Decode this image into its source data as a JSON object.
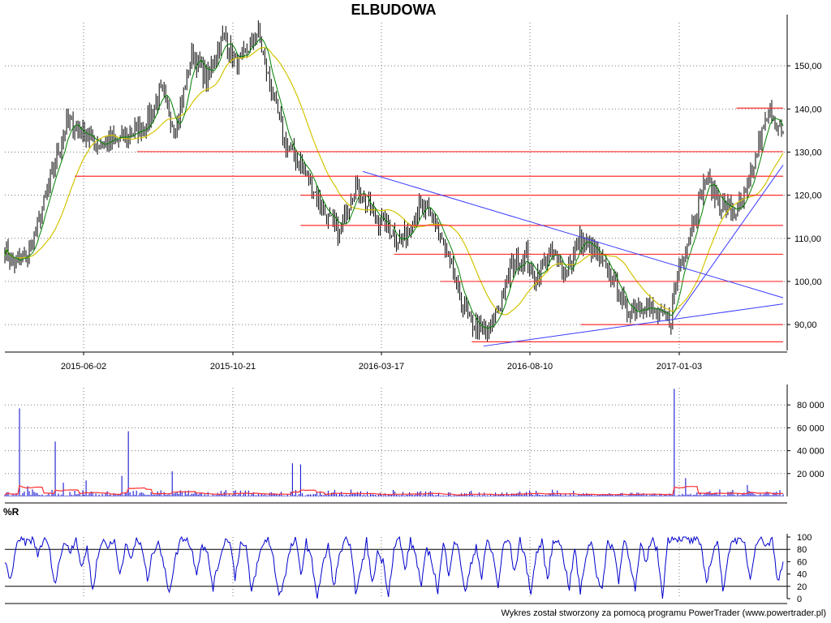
{
  "chart_data": [
    {
      "type": "candlestick",
      "title": "ELBUDOWA",
      "xlabels": [
        "2015-06-02",
        "2015-10-21",
        "2016-03-17",
        "2016-08-10",
        "2017-01-03"
      ],
      "ylim": [
        84,
        160
      ],
      "yticks": [
        90,
        100,
        110,
        120,
        130,
        140,
        150
      ],
      "ytick_labels": [
        "90,00",
        "100,00",
        "110,00",
        "120,00",
        "130,00",
        "140,00",
        "150,00"
      ],
      "grid": true,
      "price_path": [
        {
          "t": 0.0,
          "p": 108
        },
        {
          "t": 0.01,
          "p": 104
        },
        {
          "t": 0.03,
          "p": 106
        },
        {
          "t": 0.05,
          "p": 118
        },
        {
          "t": 0.08,
          "p": 137
        },
        {
          "t": 0.12,
          "p": 132
        },
        {
          "t": 0.15,
          "p": 133
        },
        {
          "t": 0.18,
          "p": 136
        },
        {
          "t": 0.2,
          "p": 144
        },
        {
          "t": 0.22,
          "p": 135
        },
        {
          "t": 0.24,
          "p": 153
        },
        {
          "t": 0.26,
          "p": 147
        },
        {
          "t": 0.28,
          "p": 157
        },
        {
          "t": 0.3,
          "p": 150
        },
        {
          "t": 0.325,
          "p": 158
        },
        {
          "t": 0.34,
          "p": 146
        },
        {
          "t": 0.36,
          "p": 132
        },
        {
          "t": 0.385,
          "p": 126
        },
        {
          "t": 0.41,
          "p": 116
        },
        {
          "t": 0.43,
          "p": 111
        },
        {
          "t": 0.45,
          "p": 123
        },
        {
          "t": 0.47,
          "p": 116
        },
        {
          "t": 0.49,
          "p": 113
        },
        {
          "t": 0.51,
          "p": 109
        },
        {
          "t": 0.53,
          "p": 117
        },
        {
          "t": 0.55,
          "p": 115
        },
        {
          "t": 0.57,
          "p": 105
        },
        {
          "t": 0.585,
          "p": 96
        },
        {
          "t": 0.6,
          "p": 90
        },
        {
          "t": 0.62,
          "p": 88
        },
        {
          "t": 0.635,
          "p": 94
        },
        {
          "t": 0.65,
          "p": 103
        },
        {
          "t": 0.67,
          "p": 106
        },
        {
          "t": 0.68,
          "p": 100
        },
        {
          "t": 0.7,
          "p": 107
        },
        {
          "t": 0.72,
          "p": 102
        },
        {
          "t": 0.74,
          "p": 110
        },
        {
          "t": 0.76,
          "p": 106
        },
        {
          "t": 0.78,
          "p": 101
        },
        {
          "t": 0.8,
          "p": 93
        },
        {
          "t": 0.82,
          "p": 95
        },
        {
          "t": 0.84,
          "p": 92
        },
        {
          "t": 0.855,
          "p": 91
        },
        {
          "t": 0.865,
          "p": 103
        },
        {
          "t": 0.88,
          "p": 111
        },
        {
          "t": 0.9,
          "p": 124
        },
        {
          "t": 0.92,
          "p": 118
        },
        {
          "t": 0.94,
          "p": 116
        },
        {
          "t": 0.955,
          "p": 121
        },
        {
          "t": 0.97,
          "p": 133
        },
        {
          "t": 0.985,
          "p": 140
        },
        {
          "t": 1.0,
          "p": 133
        }
      ],
      "ma_short_color": "#008000",
      "ma_long_color": "#d4c400",
      "candle_color": "#000000",
      "support_resistance_levels": [
        {
          "value": 140.2,
          "from": 0.94,
          "to": 1.0
        },
        {
          "value": 130.1,
          "from": 0.17,
          "to": 1.0
        },
        {
          "value": 124.4,
          "from": 0.09,
          "to": 1.0
        },
        {
          "value": 120.0,
          "from": 0.38,
          "to": 1.0
        },
        {
          "value": 113.0,
          "from": 0.38,
          "to": 1.0
        },
        {
          "value": 106.3,
          "from": 0.5,
          "to": 1.0
        },
        {
          "value": 100.0,
          "from": 0.56,
          "to": 1.0
        },
        {
          "value": 90.0,
          "from": 0.74,
          "to": 1.0
        },
        {
          "value": 86.0,
          "from": 0.6,
          "to": 1.0
        }
      ],
      "level_color": "#ff3030",
      "trendlines": [
        {
          "t1": 0.46,
          "p1": 125.5,
          "t2": 1.0,
          "p2": 96.2
        },
        {
          "t1": 0.615,
          "p1": 85.0,
          "t2": 1.0,
          "p2": 94.8
        },
        {
          "t1": 0.86,
          "p1": 91.2,
          "t2": 1.0,
          "p2": 127.0
        }
      ],
      "trendline_color": "#3a3aff"
    },
    {
      "type": "bar",
      "ylim": [
        0,
        95000
      ],
      "yticks": [
        20000,
        40000,
        60000,
        80000
      ],
      "ytick_labels": [
        "20 000",
        "40 000",
        "60 000",
        "80 000"
      ],
      "bar_color": "#0000cc",
      "avg_color": "#ff3030",
      "spikes": [
        {
          "t": 0.018,
          "v": 77000
        },
        {
          "t": 0.03,
          "v": 9000
        },
        {
          "t": 0.065,
          "v": 48000
        },
        {
          "t": 0.075,
          "v": 12000
        },
        {
          "t": 0.105,
          "v": 14000
        },
        {
          "t": 0.15,
          "v": 18000
        },
        {
          "t": 0.158,
          "v": 57000
        },
        {
          "t": 0.215,
          "v": 22000
        },
        {
          "t": 0.37,
          "v": 29000
        },
        {
          "t": 0.38,
          "v": 28000
        },
        {
          "t": 0.86,
          "v": 94000
        },
        {
          "t": 0.875,
          "v": 16000
        },
        {
          "t": 0.955,
          "v": 10000
        }
      ]
    },
    {
      "type": "line",
      "label": "%R",
      "ylim": [
        0,
        100
      ],
      "yticks": [
        0,
        20,
        40,
        60,
        80,
        100
      ],
      "ytick_labels": [
        "0",
        "20",
        "40",
        "60",
        "80",
        "100"
      ],
      "levels": [
        20,
        80
      ],
      "line_color": "#0000cc",
      "values": [
        60,
        28,
        82,
        96,
        90,
        98,
        72,
        95,
        88,
        22,
        64,
        92,
        78,
        100,
        46,
        86,
        12,
        72,
        96,
        84,
        94,
        40,
        88,
        62,
        98,
        82,
        30,
        76,
        95,
        52,
        12,
        60,
        96,
        100,
        82,
        44,
        90,
        70,
        18,
        58,
        92,
        98,
        34,
        90,
        82,
        10,
        54,
        86,
        100,
        64,
        6,
        30,
        78,
        98,
        40,
        92,
        60,
        4,
        52,
        88,
        20,
        66,
        98,
        82,
        14,
        44,
        96,
        22,
        76,
        60,
        8,
        82,
        100,
        46,
        94,
        70,
        18,
        84,
        58,
        12,
        90,
        42,
        96,
        70,
        8,
        52,
        88,
        32,
        96,
        72,
        20,
        88,
        96,
        40,
        98,
        60,
        10,
        74,
        92,
        30,
        90,
        100,
        62,
        18,
        82,
        8,
        70,
        96,
        40,
        14,
        92,
        84,
        30,
        98,
        66,
        12,
        86,
        56,
        100,
        78,
        6,
        96,
        100,
        98,
        100,
        92,
        98,
        82,
        28,
        68,
        96,
        12,
        74,
        98,
        92,
        88,
        30,
        92,
        100,
        86,
        96,
        28,
        60
      ]
    }
  ],
  "footer": "Wykres został stworzony za pomocą programu PowerTrader (www.powertrader.pl)"
}
